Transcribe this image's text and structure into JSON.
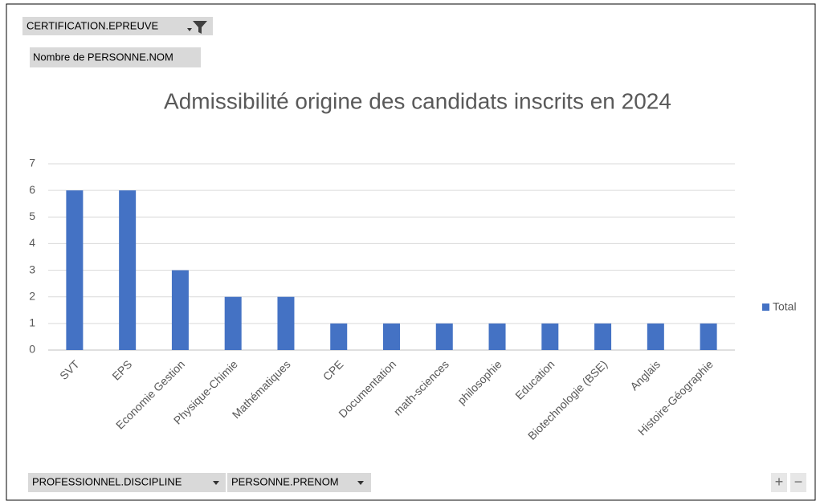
{
  "pivot_fields": {
    "filter": "CERTIFICATION.EPREUVE",
    "value": "Nombre de PERSONNE.NOM",
    "axis": [
      "PROFESSIONNEL.DISCIPLINE",
      "PERSONNE.PRENOM"
    ]
  },
  "zoom_buttons": [
    "+",
    "−"
  ],
  "chart_data": {
    "type": "bar",
    "title": "Admissibilité origine des candidats inscrits en 2024",
    "categories": [
      "SVT",
      "EPS",
      "Economie Gestion",
      "Physique-Chimie",
      "Mathématiques",
      "CPE",
      "Documentation",
      "math-sciences",
      "philosophie",
      "Education",
      "Biotechnologie (BSE)",
      "Anglais",
      "Histoire-Géographie"
    ],
    "series": [
      {
        "name": "Total",
        "color": "#4472c4",
        "values": [
          6,
          6,
          3,
          2,
          2,
          1,
          1,
          1,
          1,
          1,
          1,
          1,
          1
        ]
      }
    ],
    "ylim": [
      0,
      7
    ],
    "yticks": [
      0,
      1,
      2,
      3,
      4,
      5,
      6,
      7
    ],
    "grid": true,
    "legend": "right"
  }
}
